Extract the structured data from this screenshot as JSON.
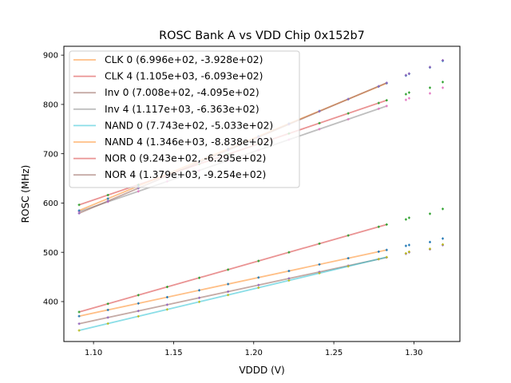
{
  "chart_data": {
    "type": "line",
    "title": "ROSC Bank A vs VDD Chip 0x152b7",
    "xlabel": "VDDD (V)",
    "ylabel": "ROSC (MHz)",
    "xlim": [
      1.0815,
      1.3287
    ],
    "ylim": [
      319,
      918
    ],
    "xticks": [
      1.1,
      1.15,
      1.2,
      1.25,
      1.3
    ],
    "xtick_labels": [
      "1.10",
      "1.15",
      "1.20",
      "1.25",
      "1.30"
    ],
    "yticks": [
      400,
      500,
      600,
      700,
      800,
      900
    ],
    "ytick_labels": [
      "400",
      "500",
      "600",
      "700",
      "800",
      "900"
    ],
    "grid": false,
    "legend_position": "top-left",
    "fit_x": [
      1.091,
      1.283
    ],
    "sample_x": [
      1.091,
      1.109,
      1.128,
      1.146,
      1.166,
      1.184,
      1.203,
      1.222,
      1.241,
      1.259,
      1.278,
      1.283
    ],
    "fits": [
      {
        "name": "CLK 0",
        "label": "CLK 0 (6.996e+02, -3.928e+02)",
        "slope": 699.6,
        "intercept": -392.8,
        "color": "#ff7f0e",
        "marker_color": "#1f77b4"
      },
      {
        "name": "CLK 4",
        "label": "CLK 4 (1.105e+03, -6.093e+02)",
        "slope": 1105,
        "intercept": -609.3,
        "color": "#d62728",
        "marker_color": "#2ca02c"
      },
      {
        "name": "Inv 0",
        "label": "Inv 0 (7.008e+02, -4.095e+02)",
        "slope": 700.8,
        "intercept": -409.5,
        "color": "#8c564b",
        "marker_color": "#9467bd"
      },
      {
        "name": "Inv 4",
        "label": "Inv 4 (1.117e+03, -6.363e+02)",
        "slope": 1117,
        "intercept": -636.3,
        "color": "#7f7f7f",
        "marker_color": "#e377c2"
      },
      {
        "name": "NAND 0",
        "label": "NAND 0 (7.743e+02, -5.033e+02)",
        "slope": 774.3,
        "intercept": -503.3,
        "color": "#17becf",
        "marker_color": "#bcbd22"
      },
      {
        "name": "NAND 4",
        "label": "NAND 4 (1.346e+03, -8.838e+02)",
        "slope": 1346,
        "intercept": -883.8,
        "color": "#ff7f0e",
        "marker_color": "#1f77b4"
      },
      {
        "name": "NOR 0",
        "label": "NOR 0 (9.243e+02, -6.295e+02)",
        "slope": 924.3,
        "intercept": -629.5,
        "color": "#d62728",
        "marker_color": "#2ca02c"
      },
      {
        "name": "NOR 4",
        "label": "NOR 4 (1.379e+03, -9.254e+02)",
        "slope": 1379,
        "intercept": -925.4,
        "color": "#8c564b",
        "marker_color": "#9467bd"
      }
    ],
    "extra_points": {
      "x": [
        1.295,
        1.297,
        1.31,
        1.318
      ],
      "series": [
        {
          "name": "CLK 0",
          "color": "#1f77b4",
          "values": [
            513.1,
            514.8,
            520.8,
            527.9
          ]
        },
        {
          "name": "CLK 4",
          "color": "#2ca02c",
          "values": [
            820.8,
            824.1,
            833.9,
            845.4
          ]
        },
        {
          "name": "Inv 0",
          "color": "#9467bd",
          "values": [
            497.0,
            500.0,
            506.0,
            514.5
          ]
        },
        {
          "name": "Inv 4",
          "color": "#e377c2",
          "values": [
            809.3,
            812.6,
            822.5,
            833.9
          ]
        },
        {
          "name": "NAND 0",
          "color": "#bcbd22",
          "values": [
            497.9,
            501.1,
            507.1,
            516.0
          ]
        },
        {
          "name": "NAND 4",
          "color": "#1f77b4",
          "values": [
            858.5,
            862.0,
            875.0,
            888.5
          ]
        },
        {
          "name": "NOR 0",
          "color": "#2ca02c",
          "values": [
            566.7,
            570.0,
            578.2,
            588.0
          ]
        },
        {
          "name": "NOR 4",
          "color": "#9467bd",
          "values": [
            859.5,
            862.8,
            875.9,
            889.7
          ]
        }
      ]
    }
  }
}
